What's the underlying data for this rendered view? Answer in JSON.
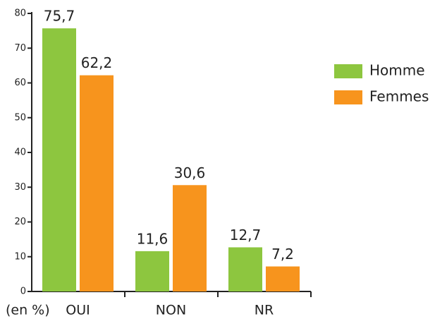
{
  "chart_data": {
    "type": "bar",
    "y_label": "(en %)",
    "categories": [
      "OUI",
      "NON",
      "NR"
    ],
    "series": [
      {
        "name": "Homme",
        "color": "#8dc63f",
        "values": [
          75.7,
          11.6,
          12.7
        ],
        "value_labels": [
          "75,7",
          "11,6",
          "12,7"
        ]
      },
      {
        "name": "Femmes",
        "color": "#f7941d",
        "values": [
          62.2,
          30.6,
          7.2
        ],
        "value_labels": [
          "62,2",
          "30,6",
          "7,2"
        ]
      }
    ],
    "ylim": [
      0,
      80
    ],
    "yticks": [
      0,
      10,
      20,
      30,
      40,
      50,
      60,
      70,
      80
    ],
    "grid": false,
    "legend": "right"
  }
}
